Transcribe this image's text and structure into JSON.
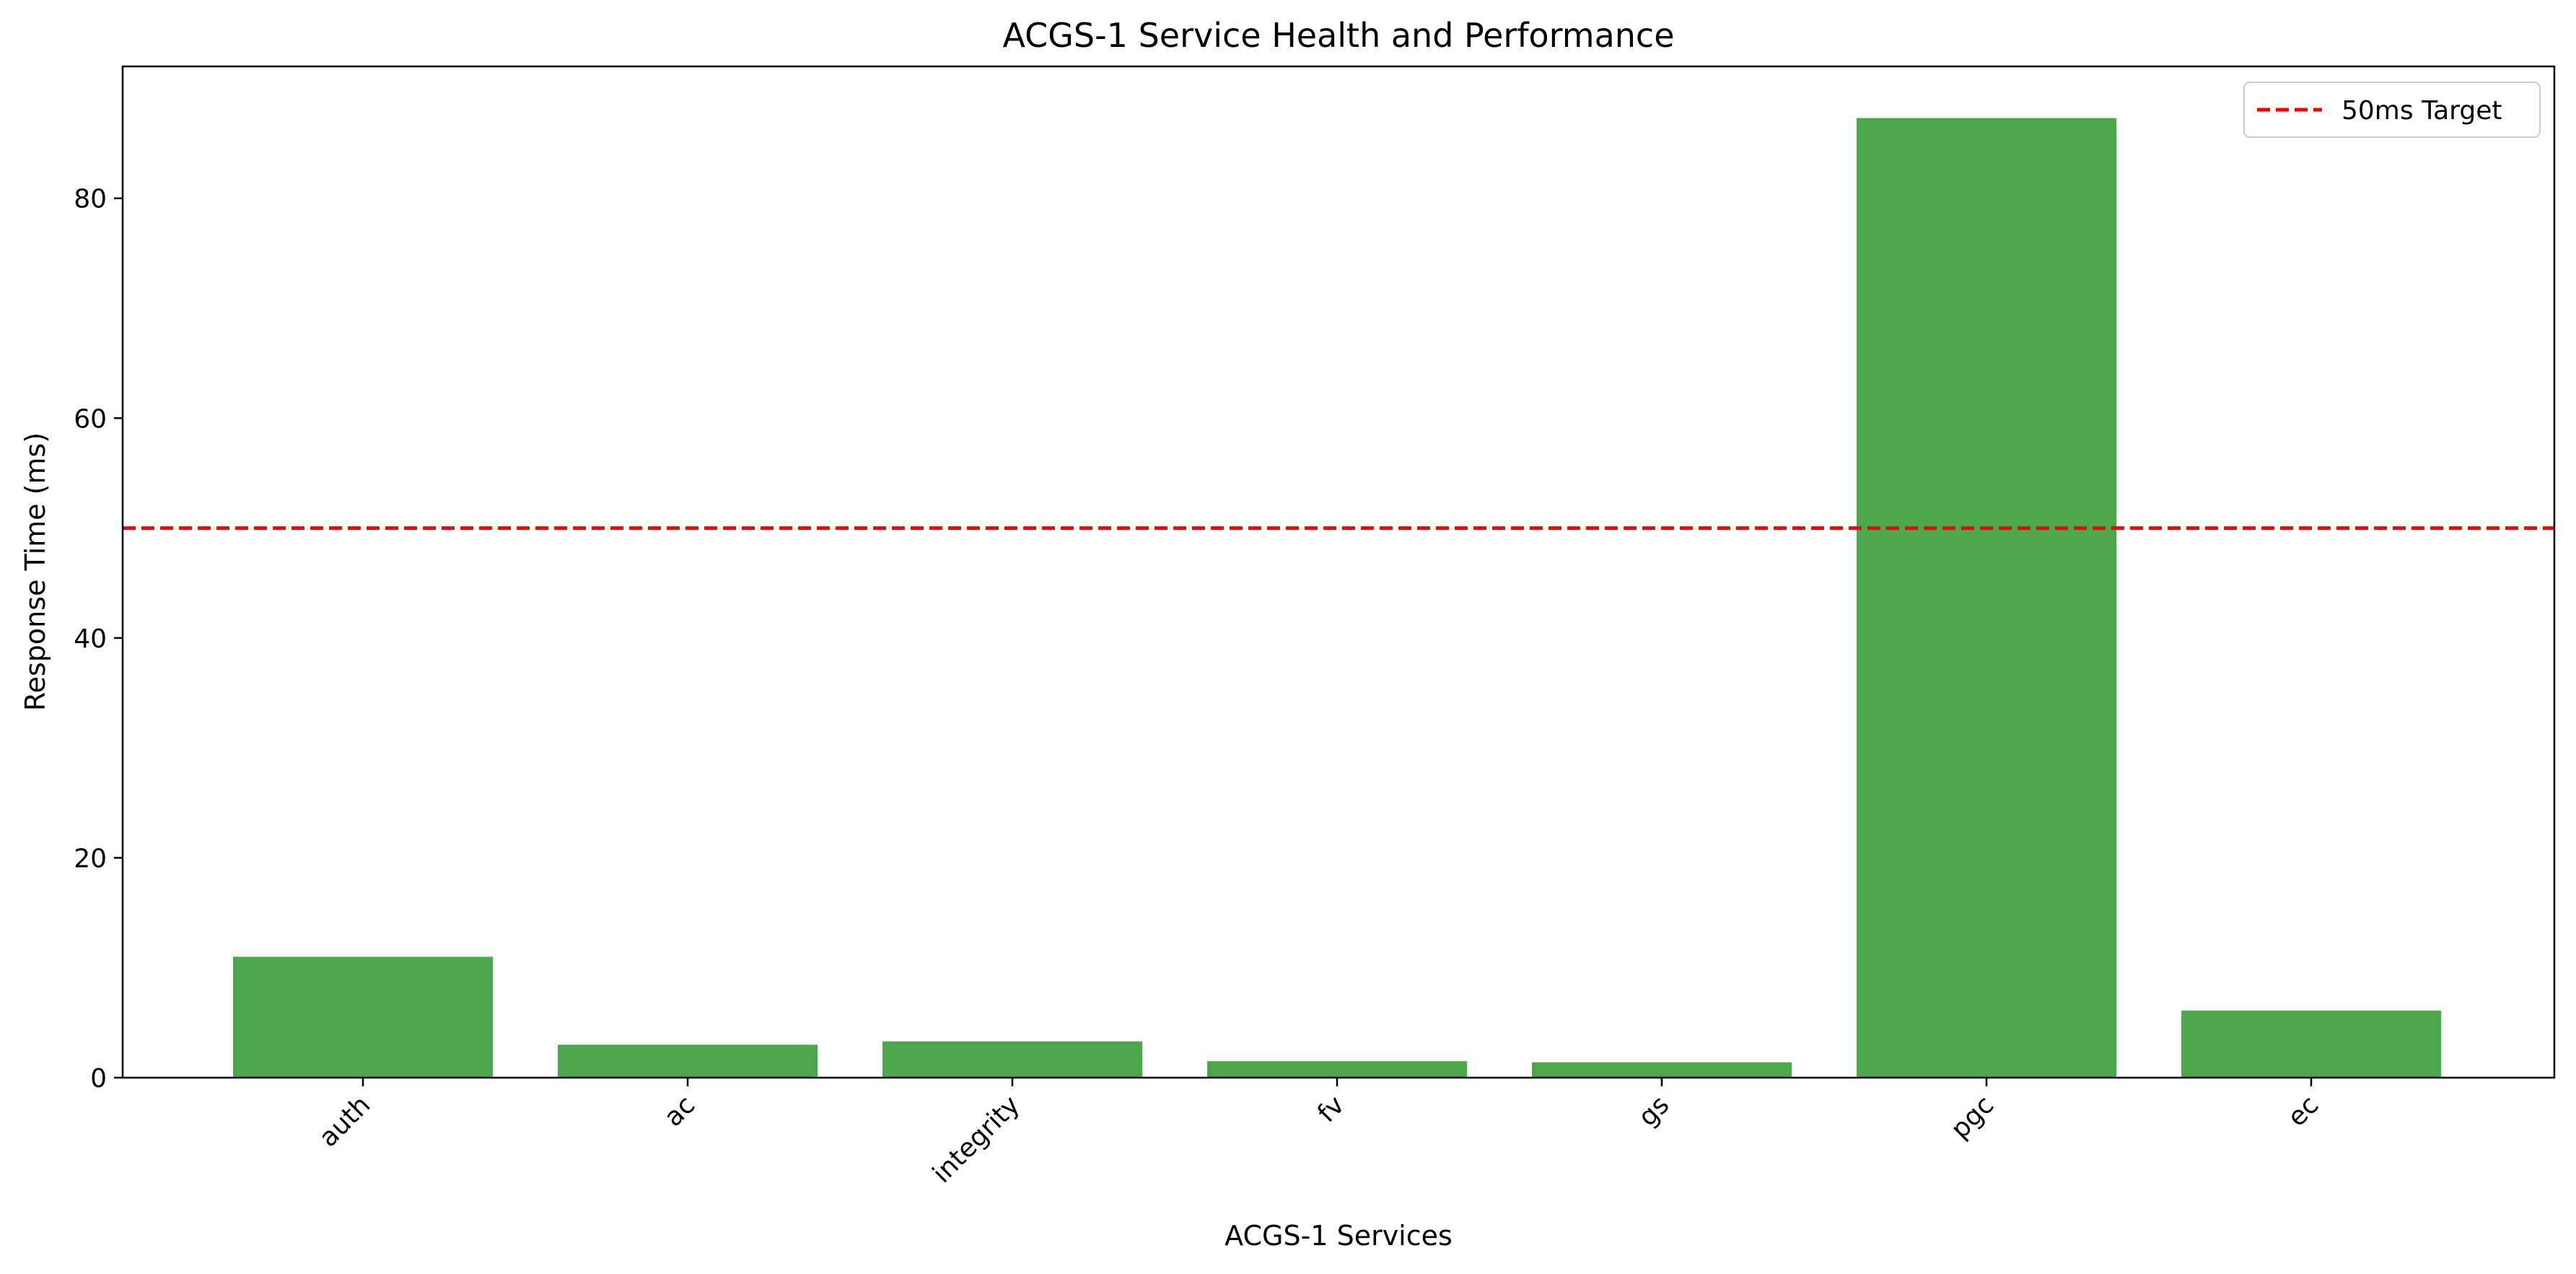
{
  "chart_data": {
    "type": "bar",
    "title": "ACGS-1 Service Health and Performance",
    "xlabel": "ACGS-1 Services",
    "ylabel": "Response Time (ms)",
    "categories": [
      "auth",
      "ac",
      "integrity",
      "fv",
      "gs",
      "pgc",
      "ec"
    ],
    "values": [
      11.0,
      3.0,
      3.3,
      1.5,
      1.4,
      87.3,
      6.1
    ],
    "ylim": [
      0,
      92
    ],
    "yticks": [
      0,
      20,
      40,
      60,
      80
    ],
    "bar_color": "#4ca64c",
    "reference_line": {
      "value": 50,
      "label": "50ms Target",
      "color": "#ff0000",
      "style": "dashed"
    },
    "legend": {
      "position": "top-right",
      "entries": [
        "50ms Target"
      ]
    },
    "grid": false
  }
}
